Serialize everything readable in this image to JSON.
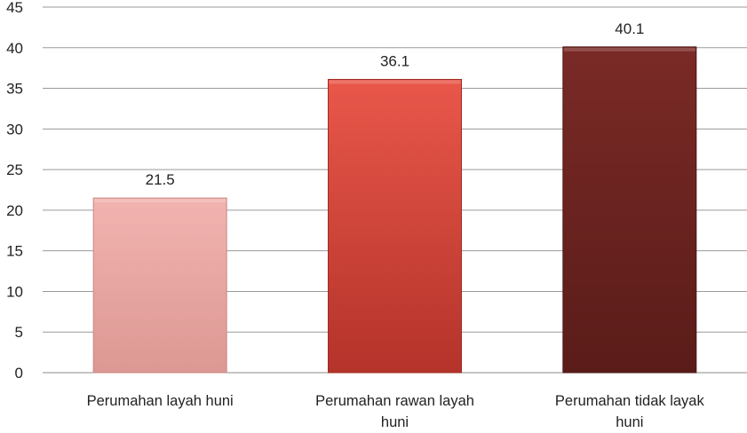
{
  "chart_data": {
    "type": "bar",
    "title": "",
    "xlabel": "",
    "ylabel": "",
    "categories": [
      [
        "Perumahan layah huni"
      ],
      [
        "Perumahan rawan layah",
        "huni"
      ],
      [
        "Perumahan tidak layak",
        "huni"
      ]
    ],
    "values": [
      21.5,
      36.1,
      40.1
    ],
    "value_labels": [
      "21.5",
      "36.1",
      "40.1"
    ],
    "ylim": [
      0,
      45
    ],
    "yticks": [
      0,
      5,
      10,
      15,
      20,
      25,
      30,
      35,
      40,
      45
    ],
    "ytick_labels": [
      "0",
      "5",
      "10",
      "15",
      "20",
      "25",
      "30",
      "35",
      "40",
      "45"
    ],
    "grid": true,
    "legend": "none",
    "colors": [
      {
        "top": "#f2b3b0",
        "bottom": "#dc9893",
        "edge": "#c98883"
      },
      {
        "top": "#e9574a",
        "bottom": "#b4332a",
        "edge": "#9f2c24"
      },
      {
        "top": "#7a2a26",
        "bottom": "#5a1c19",
        "edge": "#4a1613"
      }
    ]
  }
}
